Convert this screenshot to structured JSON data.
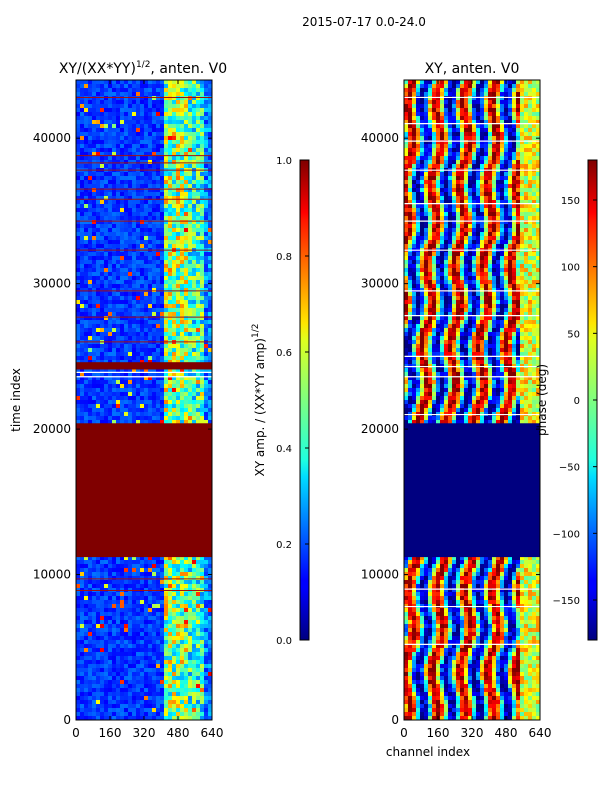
{
  "chart_data": [
    {
      "type": "heatmap",
      "suptitle": "2015-07-17 0.0-24.0",
      "title": "XY/(XX*YY)",
      "title_sup": "1/2",
      "title_suffix": ", anten. V0",
      "xlabel": "",
      "ylabel": "time index",
      "xlim": [
        0,
        640
      ],
      "ylim": [
        0,
        44000
      ],
      "xticks": [
        "0",
        "160",
        "320",
        "480",
        "640"
      ],
      "yticks": [
        "0",
        "10000",
        "20000",
        "30000",
        "40000"
      ],
      "colorbar": {
        "label": "XY amp. / (XX*YY amp)",
        "label_sup": "1/2",
        "range": [
          0.0,
          1.0
        ],
        "ticks": [
          "0.0",
          "0.2",
          "0.4",
          "0.6",
          "0.8",
          "1.0"
        ]
      },
      "notable_regions": [
        {
          "time_range": [
            11200,
            20400
          ],
          "value": 1.0,
          "note": "saturated block"
        },
        {
          "time_range": [
            24100,
            24600
          ],
          "value": 1.0,
          "note": "saturated band"
        }
      ]
    },
    {
      "type": "heatmap",
      "title": "XY, anten. V0",
      "xlabel": "channel index",
      "ylabel": "",
      "xlim": [
        0,
        640
      ],
      "ylim": [
        0,
        44000
      ],
      "xticks": [
        "0",
        "160",
        "320",
        "480",
        "640"
      ],
      "yticks": [
        "0",
        "10000",
        "20000",
        "30000",
        "40000"
      ],
      "colorbar": {
        "label": "phase (deg)",
        "range": [
          -180,
          180
        ],
        "ticks": [
          "−150",
          "−100",
          "−50",
          "0",
          "50",
          "100",
          "150"
        ]
      },
      "notable_regions": [
        {
          "time_range": [
            11200,
            20400
          ],
          "value": -180,
          "note": "constant phase block"
        }
      ]
    }
  ]
}
